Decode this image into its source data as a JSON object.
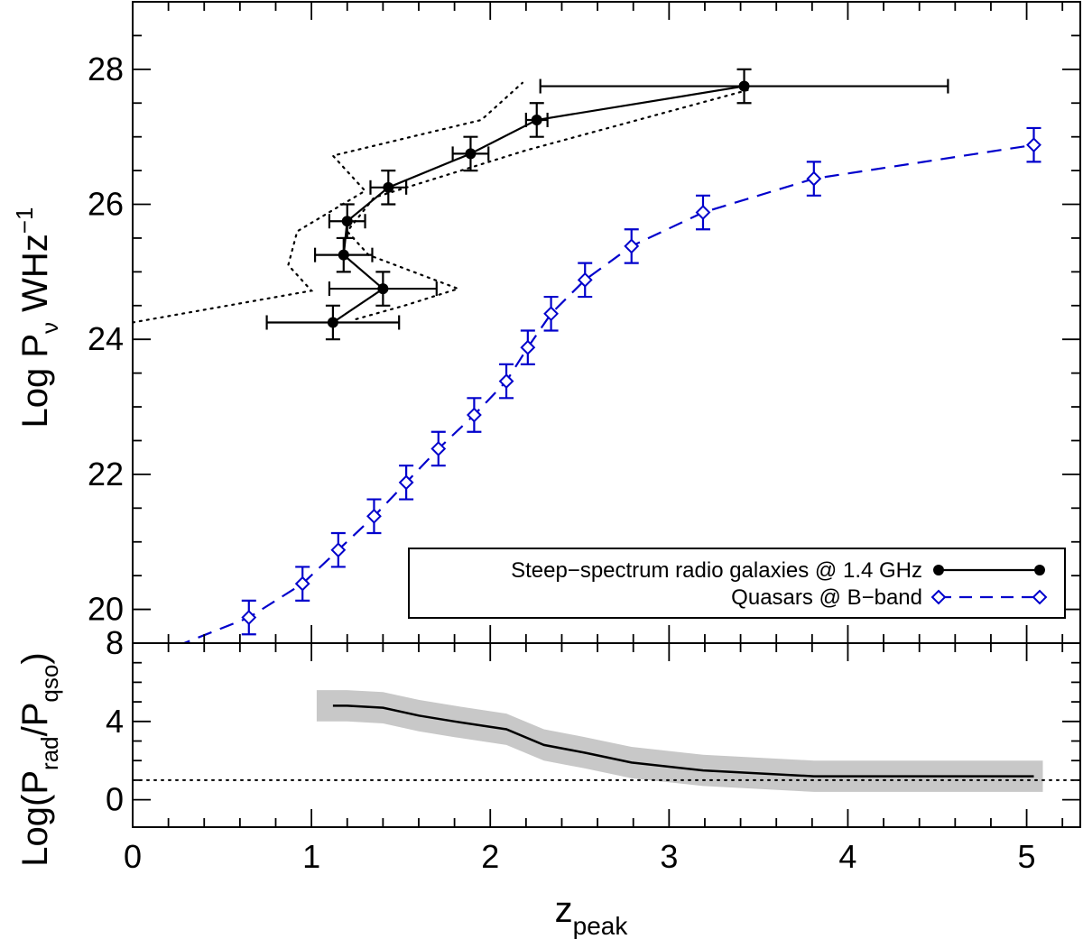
{
  "chart_data": [
    {
      "panel": "top",
      "type": "line",
      "xlabel": "z",
      "xlabel_sub": "peak",
      "ylabel_main": "Log P",
      "ylabel_sub": "ν",
      "ylabel_unit": " WHz",
      "ylabel_sup": "−1",
      "xlim": [
        0,
        5.3
      ],
      "ylim": [
        19.5,
        29
      ],
      "yticks": [
        20,
        22,
        24,
        26,
        28
      ],
      "ytick_labels": [
        "20",
        "22",
        "24",
        "26",
        "28"
      ],
      "legend_position": "bottom-right",
      "series": [
        {
          "name": "Steep−spectrum radio galaxies @ 1.4 GHz",
          "color": "#000000",
          "marker": "filled-circle",
          "line": "solid",
          "points": [
            {
              "x": 1.12,
              "y": 24.25,
              "xerr_lo": 0.37,
              "xerr_hi": 0.37,
              "yerr": 0.25
            },
            {
              "x": 1.4,
              "y": 24.75,
              "xerr_lo": 0.3,
              "xerr_hi": 0.3,
              "yerr": 0.25
            },
            {
              "x": 1.18,
              "y": 25.25,
              "xerr_lo": 0.16,
              "xerr_hi": 0.16,
              "yerr": 0.25
            },
            {
              "x": 1.2,
              "y": 25.75,
              "xerr_lo": 0.1,
              "xerr_hi": 0.1,
              "yerr": 0.25
            },
            {
              "x": 1.43,
              "y": 26.25,
              "xerr_lo": 0.1,
              "xerr_hi": 0.1,
              "yerr": 0.25
            },
            {
              "x": 1.89,
              "y": 26.75,
              "xerr_lo": 0.1,
              "xerr_hi": 0.1,
              "yerr": 0.25
            },
            {
              "x": 2.26,
              "y": 27.25,
              "xerr_lo": 0.06,
              "xerr_hi": 0.06,
              "yerr": 0.25
            },
            {
              "x": 3.42,
              "y": 27.75,
              "xerr_lo": 1.14,
              "xerr_hi": 1.14,
              "yerr": 0.25
            }
          ],
          "envelope_upper": [
            [
              0.0,
              24.25
            ],
            [
              1.0,
              24.72
            ],
            [
              0.87,
              25.1
            ],
            [
              0.92,
              25.6
            ],
            [
              1.3,
              26.2
            ],
            [
              1.12,
              26.72
            ],
            [
              1.95,
              27.25
            ],
            [
              2.18,
              27.8
            ]
          ],
          "envelope_lower": [
            [
              1.25,
              24.3
            ],
            [
              1.52,
              24.5
            ],
            [
              1.82,
              24.75
            ],
            [
              1.32,
              25.25
            ],
            [
              1.2,
              25.6
            ],
            [
              1.35,
              26.1
            ],
            [
              2.2,
              26.8
            ],
            [
              3.45,
              27.7
            ]
          ]
        },
        {
          "name": "Quasars @ B−band",
          "color": "#0000cc",
          "marker": "open-diamond",
          "line": "dashed",
          "curve_start": {
            "x": 0.0,
            "y": 19.2
          },
          "points": [
            {
              "x": 0.65,
              "y": 19.88,
              "yerr": 0.25
            },
            {
              "x": 0.95,
              "y": 20.38,
              "yerr": 0.25
            },
            {
              "x": 1.15,
              "y": 20.88,
              "yerr": 0.25
            },
            {
              "x": 1.35,
              "y": 21.38,
              "yerr": 0.25
            },
            {
              "x": 1.53,
              "y": 21.88,
              "yerr": 0.25
            },
            {
              "x": 1.71,
              "y": 22.38,
              "yerr": 0.25
            },
            {
              "x": 1.91,
              "y": 22.88,
              "yerr": 0.25
            },
            {
              "x": 2.09,
              "y": 23.38,
              "yerr": 0.25
            },
            {
              "x": 2.21,
              "y": 23.88,
              "yerr": 0.25
            },
            {
              "x": 2.34,
              "y": 24.38,
              "yerr": 0.25
            },
            {
              "x": 2.53,
              "y": 24.88,
              "yerr": 0.25
            },
            {
              "x": 2.79,
              "y": 25.38,
              "yerr": 0.25
            },
            {
              "x": 3.19,
              "y": 25.88,
              "yerr": 0.25
            },
            {
              "x": 3.81,
              "y": 26.38,
              "yerr": 0.25
            },
            {
              "x": 5.04,
              "y": 26.88,
              "yerr": 0.25
            }
          ]
        }
      ]
    },
    {
      "panel": "bottom",
      "type": "line",
      "ylabel_main": "Log(P",
      "ylabel_sub1": "rad",
      "ylabel_mid": "/P",
      "ylabel_sub2": "qso",
      "ylabel_end": ")",
      "xlabel": "z",
      "xlabel_sub": "peak",
      "xlim": [
        0,
        5.3
      ],
      "ylim": [
        -1.4,
        8
      ],
      "xticks": [
        0,
        1,
        2,
        3,
        4,
        5
      ],
      "xtick_labels": [
        "0",
        "1",
        "2",
        "3",
        "4",
        "5"
      ],
      "yticks": [
        0,
        4,
        8
      ],
      "ytick_labels": [
        "0",
        "4",
        "8"
      ],
      "reference_line_y": 1.0,
      "ratio": {
        "x": [
          1.12,
          1.2,
          1.4,
          1.6,
          1.8,
          2.09,
          2.3,
          2.53,
          2.79,
          3.19,
          3.81,
          4.4,
          5.04
        ],
        "y": [
          4.8,
          4.8,
          4.7,
          4.3,
          4.0,
          3.6,
          2.8,
          2.4,
          1.9,
          1.5,
          1.2,
          1.2,
          1.2
        ],
        "band_halfwidth": 0.8
      }
    }
  ]
}
